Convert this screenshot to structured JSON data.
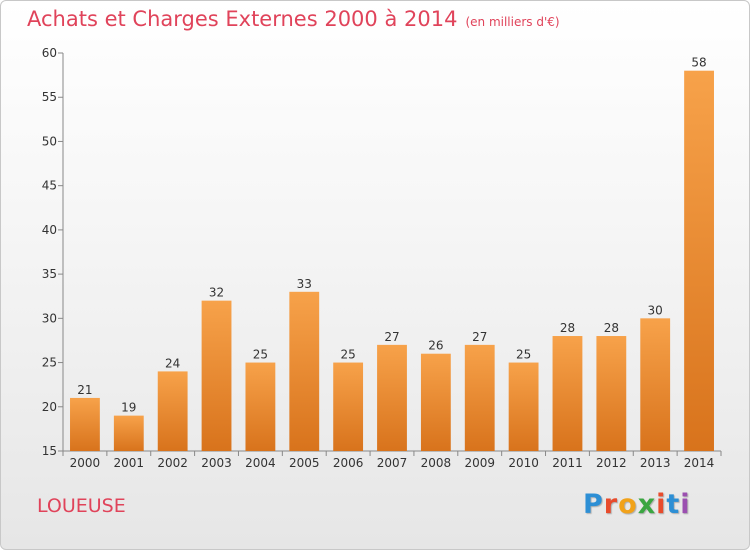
{
  "header": {
    "title": "Achats et Charges Externes 2000 à 2014",
    "subtitle": "(en milliers d'€)"
  },
  "footer": {
    "commune": "LOUEUSE",
    "brand": "Proxiti",
    "brand_colors": [
      "#2d8fd5",
      "#e84b2c",
      "#f1a21a",
      "#3aa641",
      "#e84b2c",
      "#2d8fd5",
      "#9b4fb0"
    ]
  },
  "chart_data": {
    "type": "bar",
    "categories": [
      "2000",
      "2001",
      "2002",
      "2003",
      "2004",
      "2005",
      "2006",
      "2007",
      "2008",
      "2009",
      "2010",
      "2011",
      "2012",
      "2013",
      "2014"
    ],
    "values": [
      21,
      19,
      24,
      32,
      25,
      33,
      25,
      27,
      26,
      27,
      25,
      28,
      28,
      30,
      58
    ],
    "title": "Achats et Charges Externes 2000 à 2014",
    "ylim": [
      15,
      60
    ],
    "yticks": [
      15,
      20,
      25,
      30,
      35,
      40,
      45,
      50,
      55,
      60
    ],
    "grid": false,
    "bar_color_top": "#f7a24a",
    "bar_color_bottom": "#d8731c",
    "axis_color": "#888888"
  }
}
